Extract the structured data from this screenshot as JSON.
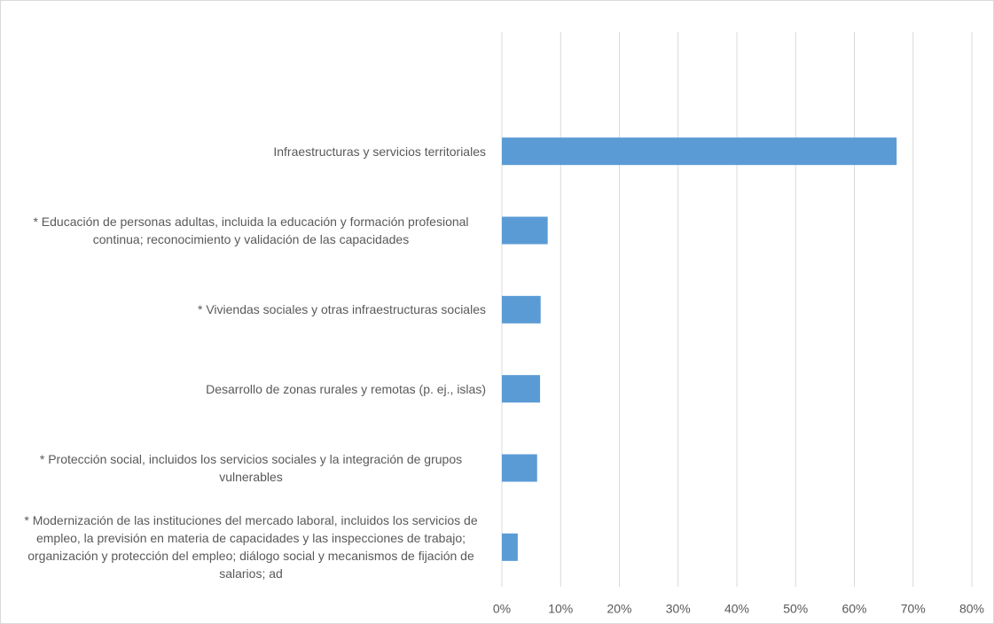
{
  "chart_data": {
    "type": "bar",
    "orientation": "horizontal",
    "categories": [
      "Infraestructuras y servicios territoriales",
      "* Educación de personas adultas, incluida la educación y formación profesional continua; reconocimiento y validación de las capacidades",
      "* Viviendas sociales y otras infraestructuras sociales",
      "Desarrollo de zonas rurales y remotas (p. ej., islas)",
      "* Protección social, incluidos los servicios sociales y la integración de grupos vulnerables",
      "* Modernización de las instituciones del mercado laboral, incluidos los servicios de empleo, la previsión en materia de capacidades y las inspecciones de trabajo; organización y protección del empleo; diálogo social y mecanismos de fijación de salarios; ad"
    ],
    "values": [
      67.2,
      7.8,
      6.6,
      6.5,
      6.0,
      2.7
    ],
    "color": "#5b9bd5",
    "xlim": [
      0,
      80
    ],
    "xticks": [
      {
        "value": 0,
        "label": "0%"
      },
      {
        "value": 10,
        "label": "10%"
      },
      {
        "value": 20,
        "label": "20%"
      },
      {
        "value": 30,
        "label": "30%"
      },
      {
        "value": 40,
        "label": "40%"
      },
      {
        "value": 50,
        "label": "50%"
      },
      {
        "value": 60,
        "label": "60%"
      },
      {
        "value": 70,
        "label": "70%"
      },
      {
        "value": 80,
        "label": "80%"
      }
    ],
    "grid": true
  }
}
